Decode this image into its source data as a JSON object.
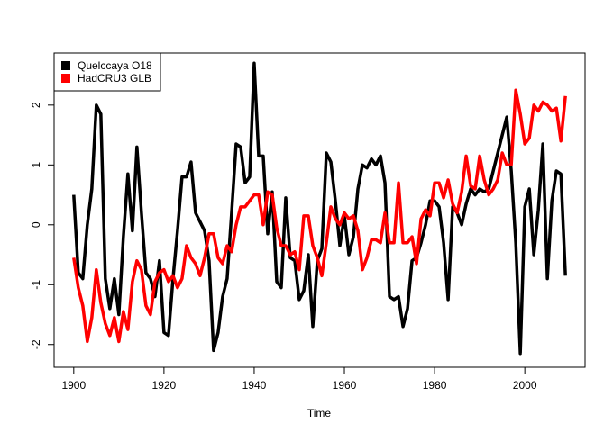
{
  "chart_data": {
    "type": "line",
    "xlabel": "Time",
    "x": [
      1900,
      1901,
      1902,
      1903,
      1904,
      1905,
      1906,
      1907,
      1908,
      1909,
      1910,
      1911,
      1912,
      1913,
      1914,
      1915,
      1916,
      1917,
      1918,
      1919,
      1920,
      1921,
      1922,
      1923,
      1924,
      1925,
      1926,
      1927,
      1928,
      1929,
      1930,
      1931,
      1932,
      1933,
      1934,
      1935,
      1936,
      1937,
      1938,
      1939,
      1940,
      1941,
      1942,
      1943,
      1944,
      1945,
      1946,
      1947,
      1948,
      1949,
      1950,
      1951,
      1952,
      1953,
      1954,
      1955,
      1956,
      1957,
      1958,
      1959,
      1960,
      1961,
      1962,
      1963,
      1964,
      1965,
      1966,
      1967,
      1968,
      1969,
      1970,
      1971,
      1972,
      1973,
      1974,
      1975,
      1976,
      1977,
      1978,
      1979,
      1980,
      1981,
      1982,
      1983,
      1984,
      1985,
      1986,
      1987,
      1988,
      1989,
      1990,
      1991,
      1992,
      1993,
      1994,
      1995,
      1996,
      1997,
      1998,
      1999,
      2000,
      2001,
      2002,
      2003,
      2004,
      2005,
      2006,
      2007,
      2008,
      2009
    ],
    "series": [
      {
        "name": "Quelccaya O18",
        "color": "#000000",
        "values": [
          0.5,
          -0.8,
          -0.9,
          0.0,
          0.6,
          2.0,
          1.85,
          -0.9,
          -1.4,
          -0.9,
          -1.5,
          -0.2,
          0.85,
          -0.1,
          1.3,
          0.2,
          -0.8,
          -0.9,
          -1.2,
          -0.6,
          -1.8,
          -1.85,
          -0.9,
          -0.1,
          0.8,
          0.8,
          1.05,
          0.2,
          0.05,
          -0.1,
          -0.6,
          -2.1,
          -1.8,
          -1.2,
          -0.9,
          0.2,
          1.35,
          1.3,
          0.7,
          0.8,
          2.7,
          1.15,
          1.15,
          -0.15,
          0.55,
          -0.95,
          -1.05,
          0.45,
          -0.55,
          -0.6,
          -1.25,
          -1.1,
          -0.5,
          -1.7,
          -0.6,
          -0.4,
          1.2,
          1.05,
          0.4,
          -0.35,
          0.15,
          -0.5,
          -0.2,
          0.6,
          1.0,
          0.95,
          1.1,
          1.0,
          1.15,
          0.7,
          -1.2,
          -1.25,
          -1.2,
          -1.7,
          -1.4,
          -0.6,
          -0.55,
          -0.3,
          0.0,
          0.4,
          0.4,
          0.3,
          -0.3,
          -1.25,
          0.3,
          0.2,
          0.0,
          0.35,
          0.6,
          0.5,
          0.6,
          0.55,
          0.6,
          0.9,
          1.2,
          1.5,
          1.8,
          0.9,
          -0.3,
          -2.15,
          0.3,
          0.6,
          -0.5,
          0.25,
          1.35,
          -0.9,
          0.4,
          0.9,
          0.85,
          -0.85
        ]
      },
      {
        "name": "HadCRU3 GLB",
        "color": "#ff0000",
        "values": [
          -0.55,
          -1.05,
          -1.35,
          -1.95,
          -1.55,
          -0.75,
          -1.3,
          -1.65,
          -1.85,
          -1.55,
          -1.95,
          -1.45,
          -1.75,
          -0.95,
          -0.6,
          -0.75,
          -1.35,
          -1.5,
          -0.95,
          -0.8,
          -0.75,
          -0.95,
          -0.85,
          -1.05,
          -0.9,
          -0.35,
          -0.55,
          -0.65,
          -0.85,
          -0.55,
          -0.15,
          -0.15,
          -0.55,
          -0.65,
          -0.35,
          -0.45,
          0.0,
          0.3,
          0.3,
          0.4,
          0.5,
          0.5,
          0.0,
          0.55,
          0.5,
          -0.05,
          -0.35,
          -0.35,
          -0.5,
          -0.45,
          -0.75,
          0.15,
          0.15,
          -0.35,
          -0.55,
          -0.85,
          -0.3,
          0.3,
          0.1,
          0.0,
          0.2,
          0.1,
          0.15,
          -0.1,
          -0.75,
          -0.55,
          -0.25,
          -0.25,
          -0.3,
          0.2,
          -0.3,
          -0.3,
          0.7,
          -0.3,
          -0.3,
          -0.2,
          -0.65,
          0.1,
          0.25,
          0.15,
          0.7,
          0.7,
          0.45,
          0.75,
          0.35,
          0.2,
          0.55,
          1.15,
          0.65,
          0.6,
          1.15,
          0.75,
          0.5,
          0.6,
          0.75,
          1.2,
          1.0,
          1.0,
          2.25,
          1.85,
          1.35,
          1.45,
          2.0,
          1.9,
          2.05,
          2.0,
          1.9,
          1.95,
          1.4,
          2.15
        ]
      }
    ],
    "xlim": [
      1895.64,
      2013.36
    ],
    "xticks": [
      1900,
      1920,
      1940,
      1960,
      1980,
      2000
    ],
    "ylim": [
      -2.38,
      2.87
    ],
    "yticks": [
      -2,
      -1,
      0,
      1,
      2
    ],
    "legend": "topleft",
    "grid": false
  }
}
